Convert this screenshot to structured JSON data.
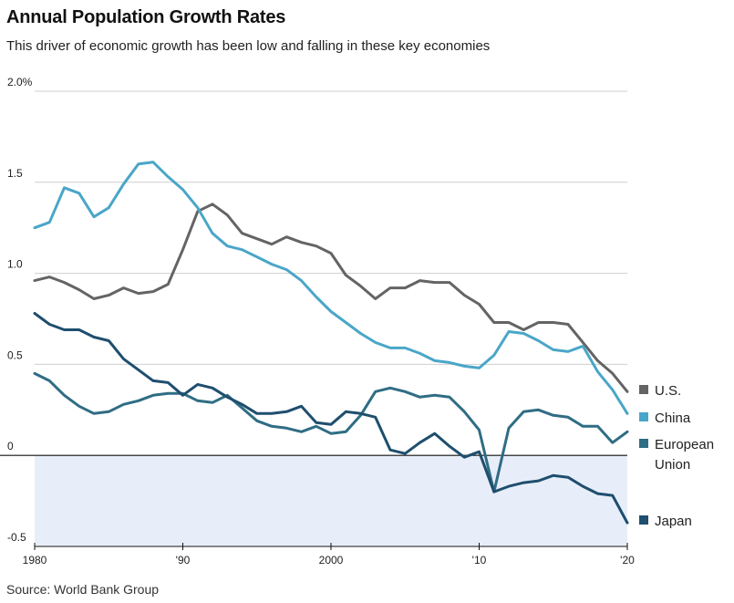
{
  "title": "Annual Population Growth Rates",
  "subtitle": "This driver of economic growth has been low and falling in these key economies",
  "source": "Source: World Bank Group",
  "chart_data": {
    "type": "line",
    "xlim": [
      1980,
      2020
    ],
    "ylim": [
      -0.5,
      2.0
    ],
    "x_ticks": [
      {
        "value": 1980,
        "label": "1980"
      },
      {
        "value": 1990,
        "label": "'90"
      },
      {
        "value": 2000,
        "label": "2000"
      },
      {
        "value": 2010,
        "label": "'10"
      },
      {
        "value": 2020,
        "label": "'20"
      }
    ],
    "y_ticks": [
      {
        "value": 2.0,
        "label": "2.0%"
      },
      {
        "value": 1.5,
        "label": "1.5"
      },
      {
        "value": 1.0,
        "label": "1.0"
      },
      {
        "value": 0.5,
        "label": "0.5"
      },
      {
        "value": 0,
        "label": "0"
      },
      {
        "value": -0.5,
        "label": "-0.5"
      }
    ],
    "negative_region_color": "#e8eef9",
    "x": [
      1980,
      1981,
      1982,
      1983,
      1984,
      1985,
      1986,
      1987,
      1988,
      1989,
      1990,
      1991,
      1992,
      1993,
      1994,
      1995,
      1996,
      1997,
      1998,
      1999,
      2000,
      2001,
      2002,
      2003,
      2004,
      2005,
      2006,
      2007,
      2008,
      2009,
      2010,
      2011,
      2012,
      2013,
      2014,
      2015,
      2016,
      2017,
      2018,
      2019,
      2020
    ],
    "series": [
      {
        "name": "U.S.",
        "label_lines": [
          "U.S."
        ],
        "color": "#646464",
        "values": [
          0.96,
          0.98,
          0.95,
          0.91,
          0.86,
          0.88,
          0.92,
          0.89,
          0.9,
          0.94,
          1.13,
          1.34,
          1.38,
          1.32,
          1.22,
          1.19,
          1.16,
          1.2,
          1.17,
          1.15,
          1.11,
          0.99,
          0.93,
          0.86,
          0.92,
          0.92,
          0.96,
          0.95,
          0.95,
          0.88,
          0.83,
          0.73,
          0.73,
          0.69,
          0.73,
          0.73,
          0.72,
          0.62,
          0.52,
          0.45,
          0.35
        ]
      },
      {
        "name": "China",
        "label_lines": [
          "China"
        ],
        "color": "#4aa6c8",
        "values": [
          1.25,
          1.28,
          1.47,
          1.44,
          1.31,
          1.36,
          1.49,
          1.6,
          1.61,
          1.53,
          1.46,
          1.36,
          1.22,
          1.15,
          1.13,
          1.09,
          1.05,
          1.02,
          0.96,
          0.87,
          0.79,
          0.73,
          0.67,
          0.62,
          0.59,
          0.59,
          0.56,
          0.52,
          0.51,
          0.49,
          0.48,
          0.55,
          0.68,
          0.67,
          0.63,
          0.58,
          0.57,
          0.6,
          0.46,
          0.36,
          0.23
        ]
      },
      {
        "name": "European Union",
        "label_lines": [
          "European",
          "Union"
        ],
        "color": "#2f6d84",
        "values": [
          0.45,
          0.41,
          0.33,
          0.27,
          0.23,
          0.24,
          0.28,
          0.3,
          0.33,
          0.34,
          0.34,
          0.3,
          0.29,
          0.33,
          0.26,
          0.19,
          0.16,
          0.15,
          0.13,
          0.16,
          0.12,
          0.13,
          0.22,
          0.35,
          0.37,
          0.35,
          0.32,
          0.33,
          0.32,
          0.24,
          0.14,
          -0.2,
          0.15,
          0.24,
          0.25,
          0.22,
          0.21,
          0.16,
          0.16,
          0.07,
          0.13
        ]
      },
      {
        "name": "Japan",
        "label_lines": [
          "Japan"
        ],
        "color": "#1f4e6e",
        "values": [
          0.78,
          0.72,
          0.69,
          0.69,
          0.65,
          0.63,
          0.53,
          0.47,
          0.41,
          0.4,
          0.33,
          0.39,
          0.37,
          0.32,
          0.28,
          0.23,
          0.23,
          0.24,
          0.27,
          0.18,
          0.17,
          0.24,
          0.23,
          0.21,
          0.03,
          0.01,
          0.07,
          0.12,
          0.05,
          -0.01,
          0.02,
          -0.2,
          -0.17,
          -0.15,
          -0.14,
          -0.11,
          -0.12,
          -0.17,
          -0.21,
          -0.22,
          -0.37
        ]
      }
    ]
  }
}
